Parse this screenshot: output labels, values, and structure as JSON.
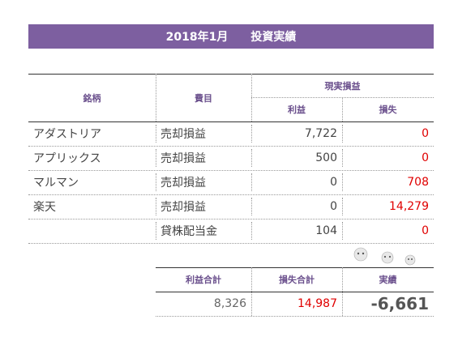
{
  "header": {
    "title": "2018年1月　　投資実績"
  },
  "table": {
    "headers": {
      "stock": "銘柄",
      "item": "費目",
      "group": "現実損益",
      "profit": "利益",
      "loss": "損失"
    },
    "rows": [
      [
        "アダストリア",
        "売却損益",
        "7,722",
        "0"
      ],
      [
        "アプリックス",
        "売却損益",
        "500",
        "0"
      ],
      [
        "マルマン",
        "売却損益",
        "0",
        "708"
      ],
      [
        "楽天",
        "売却損益",
        "0",
        "14,279"
      ],
      [
        null,
        "貸株配当金",
        "104",
        "0"
      ]
    ]
  },
  "summary": {
    "headers": [
      "利益合計",
      "損失合計",
      "実績"
    ],
    "values": [
      "8,326",
      "14,987",
      "-6,661"
    ]
  }
}
